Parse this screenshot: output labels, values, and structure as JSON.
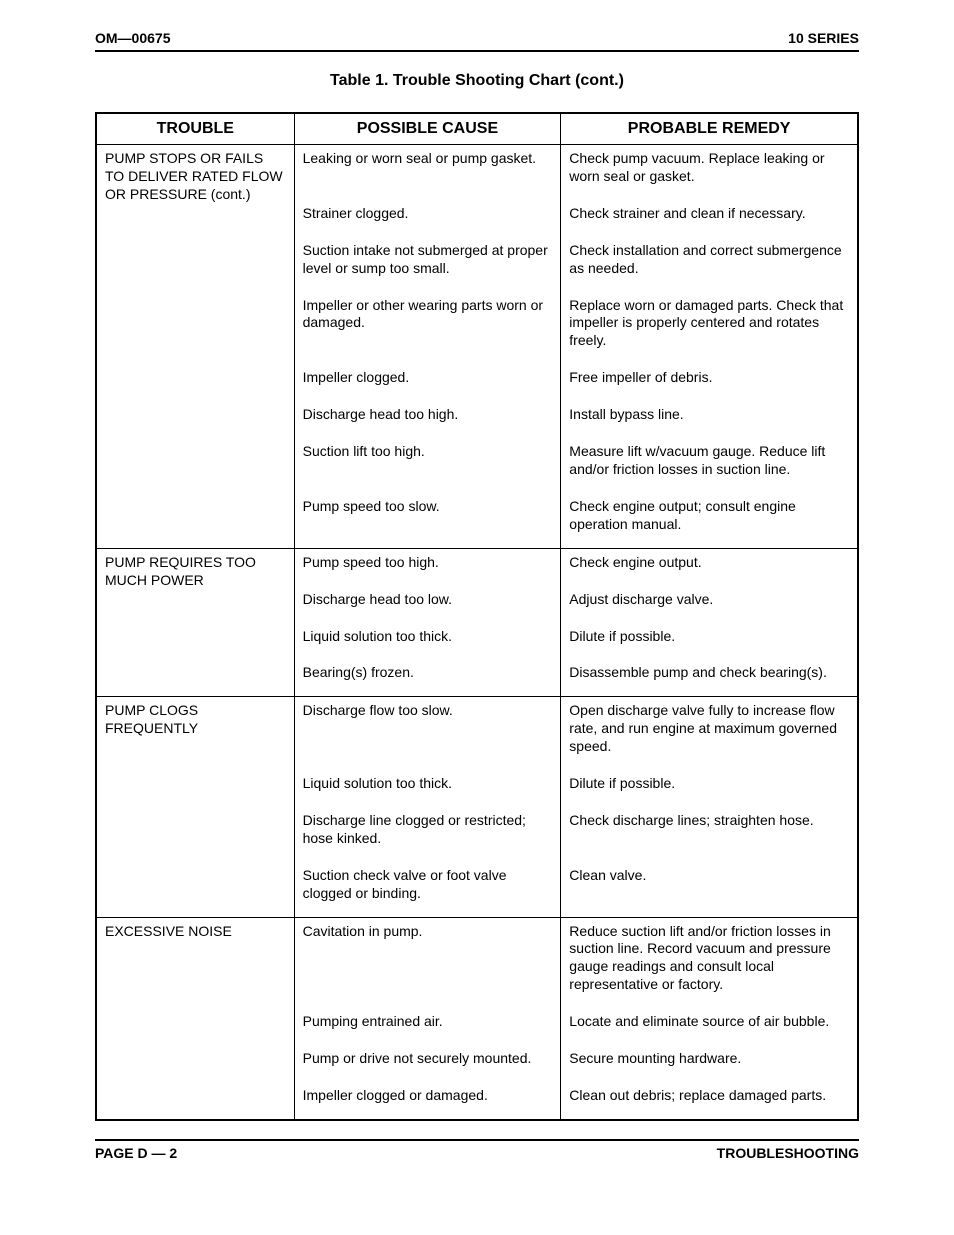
{
  "header": {
    "left": "OM—00675",
    "right": "10 SERIES"
  },
  "title": "Table 1. Trouble Shooting Chart (cont.)",
  "columns": {
    "trouble": "TROUBLE",
    "cause": "POSSIBLE CAUSE",
    "remedy": "PROBABLE REMEDY"
  },
  "groups": [
    {
      "trouble": "PUMP STOPS OR FAILS TO DELIVER RATED FLOW OR PRESSURE (cont.)",
      "rows": [
        {
          "cause": "Leaking or worn seal or pump gasket.",
          "remedy": "Check pump vacuum. Replace leaking or worn seal or gasket."
        },
        {
          "cause": "Strainer clogged.",
          "remedy": "Check strainer and clean if necessary."
        },
        {
          "cause": "Suction intake not submerged at proper level or sump too small.",
          "remedy": "Check installation and correct submergence as needed."
        },
        {
          "cause": "Impeller or other wearing parts worn or damaged.",
          "remedy": "Replace worn or damaged parts. Check that impeller is properly centered and rotates freely."
        },
        {
          "cause": "Impeller clogged.",
          "remedy": "Free impeller of debris."
        },
        {
          "cause": "Discharge head too high.",
          "remedy": "Install bypass line."
        },
        {
          "cause": "Suction lift too high.",
          "remedy": "Measure lift w/vacuum gauge. Reduce lift and/or friction losses in suction line."
        },
        {
          "cause": "Pump speed too slow.",
          "remedy": "Check engine output; consult engine operation manual."
        }
      ]
    },
    {
      "trouble": "PUMP REQUIRES TOO MUCH POWER",
      "rows": [
        {
          "cause": "Pump speed too high.",
          "remedy": "Check engine output."
        },
        {
          "cause": "Discharge head too low.",
          "remedy": "Adjust discharge valve."
        },
        {
          "cause": "Liquid solution too thick.",
          "remedy": "Dilute if possible."
        },
        {
          "cause": "Bearing(s) frozen.",
          "remedy": "Disassemble pump and check bearing(s)."
        }
      ]
    },
    {
      "trouble": "PUMP CLOGS FREQUENTLY",
      "rows": [
        {
          "cause": "Discharge flow too slow.",
          "remedy": "Open discharge valve fully to increase flow rate, and run engine at maximum governed speed."
        },
        {
          "cause": "Liquid solution too thick.",
          "remedy": "Dilute if possible."
        },
        {
          "cause": "Discharge line clogged or restricted; hose kinked.",
          "remedy": "Check discharge lines; straighten hose."
        },
        {
          "cause": "Suction check valve or foot valve clogged or binding.",
          "remedy": "Clean valve."
        }
      ]
    },
    {
      "trouble": "EXCESSIVE NOISE",
      "rows": [
        {
          "cause": "Cavitation in pump.",
          "remedy": "Reduce suction lift and/or friction losses in suction line. Record vacuum and pressure gauge readings and consult local representative or factory."
        },
        {
          "cause": "Pumping entrained air.",
          "remedy": "Locate and eliminate source of air bubble."
        },
        {
          "cause": "Pump or drive not securely mounted.",
          "remedy": "Secure mounting hardware."
        },
        {
          "cause": "Impeller clogged or damaged.",
          "remedy": "Clean out debris; replace damaged parts."
        }
      ]
    }
  ],
  "footer": {
    "left": "PAGE D — 2",
    "right": "TROUBLESHOOTING"
  }
}
